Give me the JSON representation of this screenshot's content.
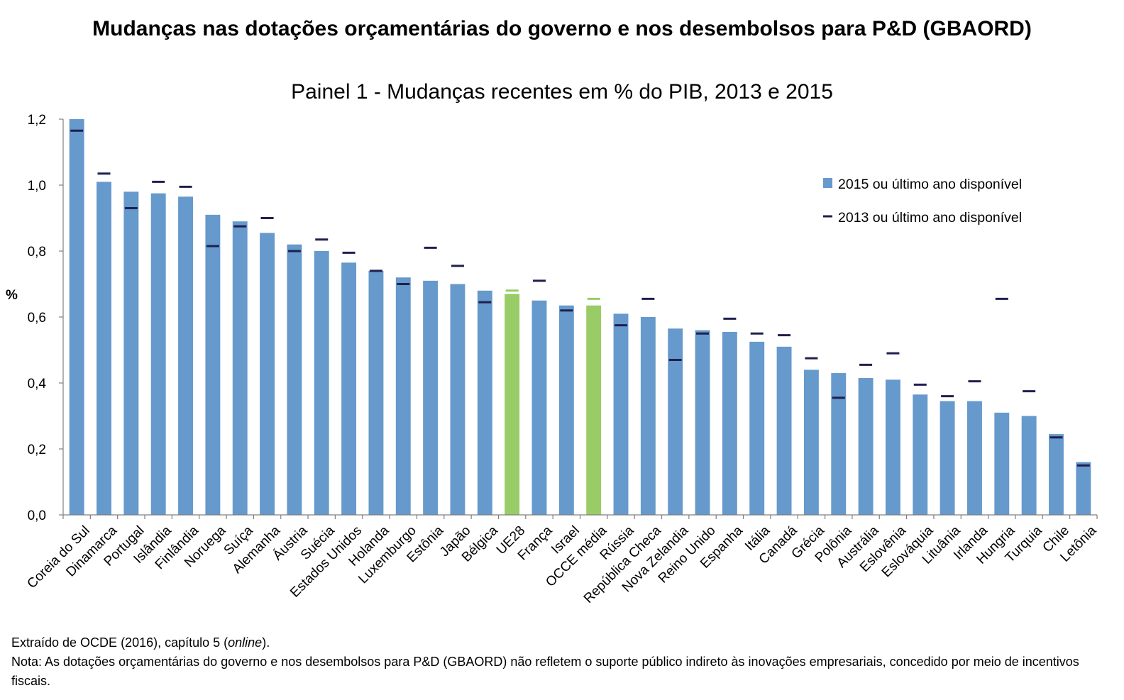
{
  "title": "Mudanças nas dotações orçamentárias do governo e nos desembolsos para P&D (GBAORD)",
  "subtitle": "Painel 1 - Mudanças recentes em % do PIB, 2013 e 2015",
  "source_prefix": "Extraído de OCDE (2016), capítulo 5 (",
  "source_italic": "online",
  "source_suffix": ").",
  "note": "Nota: As dotações orçamentárias do governo e nos desembolsos para P&D (GBAORD) não refletem o suporte público indireto às inovações empresariais, concedido por meio de incentivos fiscais.",
  "chart_data": {
    "type": "bar",
    "ylabel": "%",
    "ylim": [
      0,
      1.2
    ],
    "yticks": [
      "0,0",
      "0,2",
      "0,4",
      "0,6",
      "0,8",
      "1,0",
      "1,2"
    ],
    "grid": false,
    "legend_position": "top-right",
    "colors": {
      "bar": "#6699cc",
      "bar_highlight": "#99cc66",
      "marker": "#1f1f4f"
    },
    "highlight_categories": [
      "UE28",
      "OCCE média"
    ],
    "categories": [
      "Coreia do Sul",
      "Dinamarca",
      "Portugal",
      "Islândia",
      "Finlândia",
      "Noruega",
      "Suíça",
      "Alemanha",
      "Áustria",
      "Suécia",
      "Estados Unidos",
      "Holanda",
      "Luxemburgo",
      "Estônia",
      "Japão",
      "Bélgica",
      "UE28",
      "França",
      "Israel",
      "OCCE média",
      "Rússia",
      "República Checa",
      "Nova Zelandia",
      "Reino Unido",
      "Espanha",
      "Itália",
      "Canadá",
      "Grécia",
      "Polônia",
      "Austrália",
      "Eslovênia",
      "Eslováquia",
      "Lituânia",
      "Irlanda",
      "Hungria",
      "Turquia",
      "Chile",
      "Letônia"
    ],
    "series": [
      {
        "name": "2015 ou último ano disponível",
        "kind": "bar",
        "values": [
          1.2,
          1.01,
          0.98,
          0.975,
          0.965,
          0.91,
          0.89,
          0.855,
          0.82,
          0.8,
          0.765,
          0.74,
          0.72,
          0.71,
          0.7,
          0.68,
          0.67,
          0.65,
          0.635,
          0.635,
          0.61,
          0.6,
          0.565,
          0.56,
          0.555,
          0.525,
          0.51,
          0.44,
          0.43,
          0.415,
          0.41,
          0.365,
          0.345,
          0.345,
          0.31,
          0.3,
          0.245,
          0.16
        ]
      },
      {
        "name": "2013 ou último ano disponível",
        "kind": "marker",
        "values": [
          1.165,
          1.035,
          0.93,
          1.01,
          0.995,
          0.815,
          0.875,
          0.9,
          0.8,
          0.835,
          0.795,
          0.74,
          0.7,
          0.81,
          0.755,
          0.645,
          0.68,
          0.71,
          0.62,
          0.655,
          0.575,
          0.655,
          0.47,
          0.55,
          0.595,
          0.55,
          0.545,
          0.475,
          0.355,
          0.455,
          0.49,
          0.395,
          0.36,
          0.405,
          0.655,
          0.375,
          0.235,
          0.15
        ]
      }
    ]
  }
}
